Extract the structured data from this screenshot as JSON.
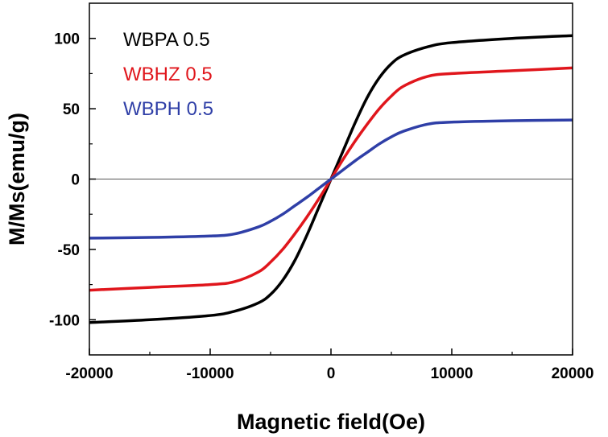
{
  "chart_data": {
    "type": "line",
    "title": "",
    "xlabel": "Magnetic field(Oe)",
    "ylabel": "M/Ms(emu/g)",
    "xlim": [
      -20000,
      20000
    ],
    "ylim": [
      -125,
      125
    ],
    "x_ticks": [
      -20000,
      -10000,
      0,
      10000,
      20000
    ],
    "y_ticks": [
      -100,
      -50,
      0,
      50,
      100
    ],
    "grid": false,
    "zero_line": true,
    "legend_position": "top-left",
    "x": [
      -20000,
      -15000,
      -10000,
      -8000,
      -6000,
      -5000,
      -4000,
      -3000,
      -2000,
      -1000,
      0,
      1000,
      2000,
      3000,
      4000,
      5000,
      6000,
      8000,
      10000,
      15000,
      20000
    ],
    "series": [
      {
        "name": "WBPA 0.5",
        "color": "#000000",
        "values": [
          -102,
          -100,
          -97,
          -94,
          -88,
          -82,
          -72,
          -58,
          -40,
          -20,
          0,
          20,
          40,
          58,
          72,
          82,
          88,
          94,
          97,
          100,
          102
        ]
      },
      {
        "name": "WBHZ 0.5",
        "color": "#e0161c",
        "values": [
          -79,
          -77,
          -75,
          -73,
          -66,
          -59,
          -50,
          -39,
          -27,
          -14,
          0,
          14,
          27,
          39,
          50,
          59,
          66,
          73,
          75,
          77,
          79
        ]
      },
      {
        "name": "WBPH 0.5",
        "color": "#2f3fa7",
        "values": [
          -42,
          -41.5,
          -40.5,
          -39,
          -34,
          -30,
          -25,
          -19,
          -13,
          -6.5,
          0,
          6.5,
          13,
          19,
          25,
          30,
          34,
          39,
          40.5,
          41.5,
          42
        ]
      }
    ]
  }
}
